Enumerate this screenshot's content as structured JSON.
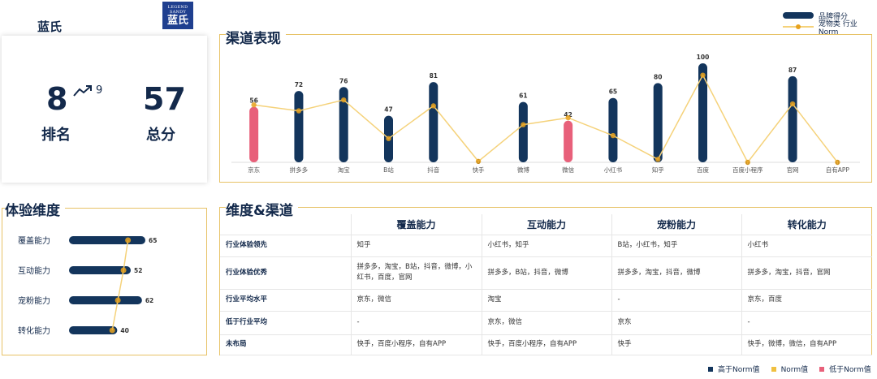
{
  "brand": {
    "name": "蓝氏",
    "logo_top": "LEGEND SANDY",
    "logo_cn": "蓝氏"
  },
  "rank": {
    "rank_value": "8",
    "rank_label": "排名",
    "prev_value": "9",
    "score_value": "57",
    "score_label": "总分"
  },
  "sections": {
    "channel_title": "渠道表现",
    "experience_title": "体验维度",
    "matrix_title": "维度&渠道"
  },
  "top_legend": {
    "brand_score": "品牌得分",
    "industry_norm": "宠物类 行业Norm"
  },
  "colors": {
    "navy": "#13355c",
    "pink": "#e8607a",
    "gold": "#f0c040",
    "line": "#f5d27a",
    "panel_border": "#e7c266"
  },
  "chart_data": [
    {
      "type": "bar",
      "categories": [
        "京东",
        "拼多多",
        "淘宝",
        "B站",
        "抖音",
        "快手",
        "微博",
        "微信",
        "小红书",
        "知乎",
        "百度",
        "百度小程序",
        "官网",
        "自有APP"
      ],
      "series": [
        {
          "name": "品牌得分",
          "values": [
            56,
            72,
            76,
            47,
            81,
            0,
            61,
            42,
            65,
            80,
            100,
            0,
            87,
            0
          ]
        },
        {
          "name": "宠物类 行业Norm",
          "values": [
            58,
            52,
            63,
            24,
            57,
            1,
            38,
            45,
            27,
            3,
            88,
            0,
            59,
            0
          ]
        }
      ],
      "bar_status": [
        "low",
        "high",
        "high",
        "high",
        "high",
        "none",
        "high",
        "low",
        "high",
        "high",
        "high",
        "none",
        "high",
        "none"
      ],
      "value_labels": [
        "56",
        "72",
        "76",
        "47",
        "81",
        "0",
        "61",
        "42",
        "65",
        "80",
        "100",
        "0",
        "87",
        "0"
      ],
      "ylim": [
        0,
        100
      ]
    },
    {
      "type": "bar",
      "orientation": "horizontal",
      "categories": [
        "覆盖能力",
        "互动能力",
        "宠粉能力",
        "转化能力"
      ],
      "series": [
        {
          "name": "品牌得分",
          "values": [
            65,
            52,
            62,
            40
          ]
        },
        {
          "name": "Norm值",
          "values": [
            51,
            47,
            42,
            37
          ]
        }
      ],
      "value_labels": [
        "65",
        "52",
        "62",
        "40"
      ],
      "xlim": [
        0,
        65
      ]
    }
  ],
  "matrix": {
    "columns": [
      "",
      "覆盖能力",
      "互动能力",
      "宠粉能力",
      "转化能力"
    ],
    "rows": [
      {
        "label": "行业体验领先",
        "cells": [
          "知乎",
          "小红书，知乎",
          "B站，小红书，知乎",
          "小红书"
        ]
      },
      {
        "label": "行业体验优秀",
        "cells": [
          "拼多多，淘宝，B站，抖音，微博，小红书，百度，官网",
          "拼多多，B站，抖音，微博",
          "拼多多，淘宝，抖音，微博",
          "拼多多，淘宝，抖音，官网"
        ]
      },
      {
        "label": "行业平均水平",
        "cells": [
          "京东，微信",
          "淘宝",
          "-",
          "京东，百度"
        ]
      },
      {
        "label": "低于行业平均",
        "cells": [
          "-",
          "京东，微信",
          "京东",
          "-"
        ]
      },
      {
        "label": "未布局",
        "cells": [
          "快手，百度小程序，自有APP",
          "快手，百度小程序，自有APP",
          "快手",
          "快手，微博，微信，自有APP"
        ]
      }
    ]
  },
  "bottom_legend": {
    "high": "高于Norm值",
    "norm": "Norm值",
    "low": "低于Norm值"
  }
}
